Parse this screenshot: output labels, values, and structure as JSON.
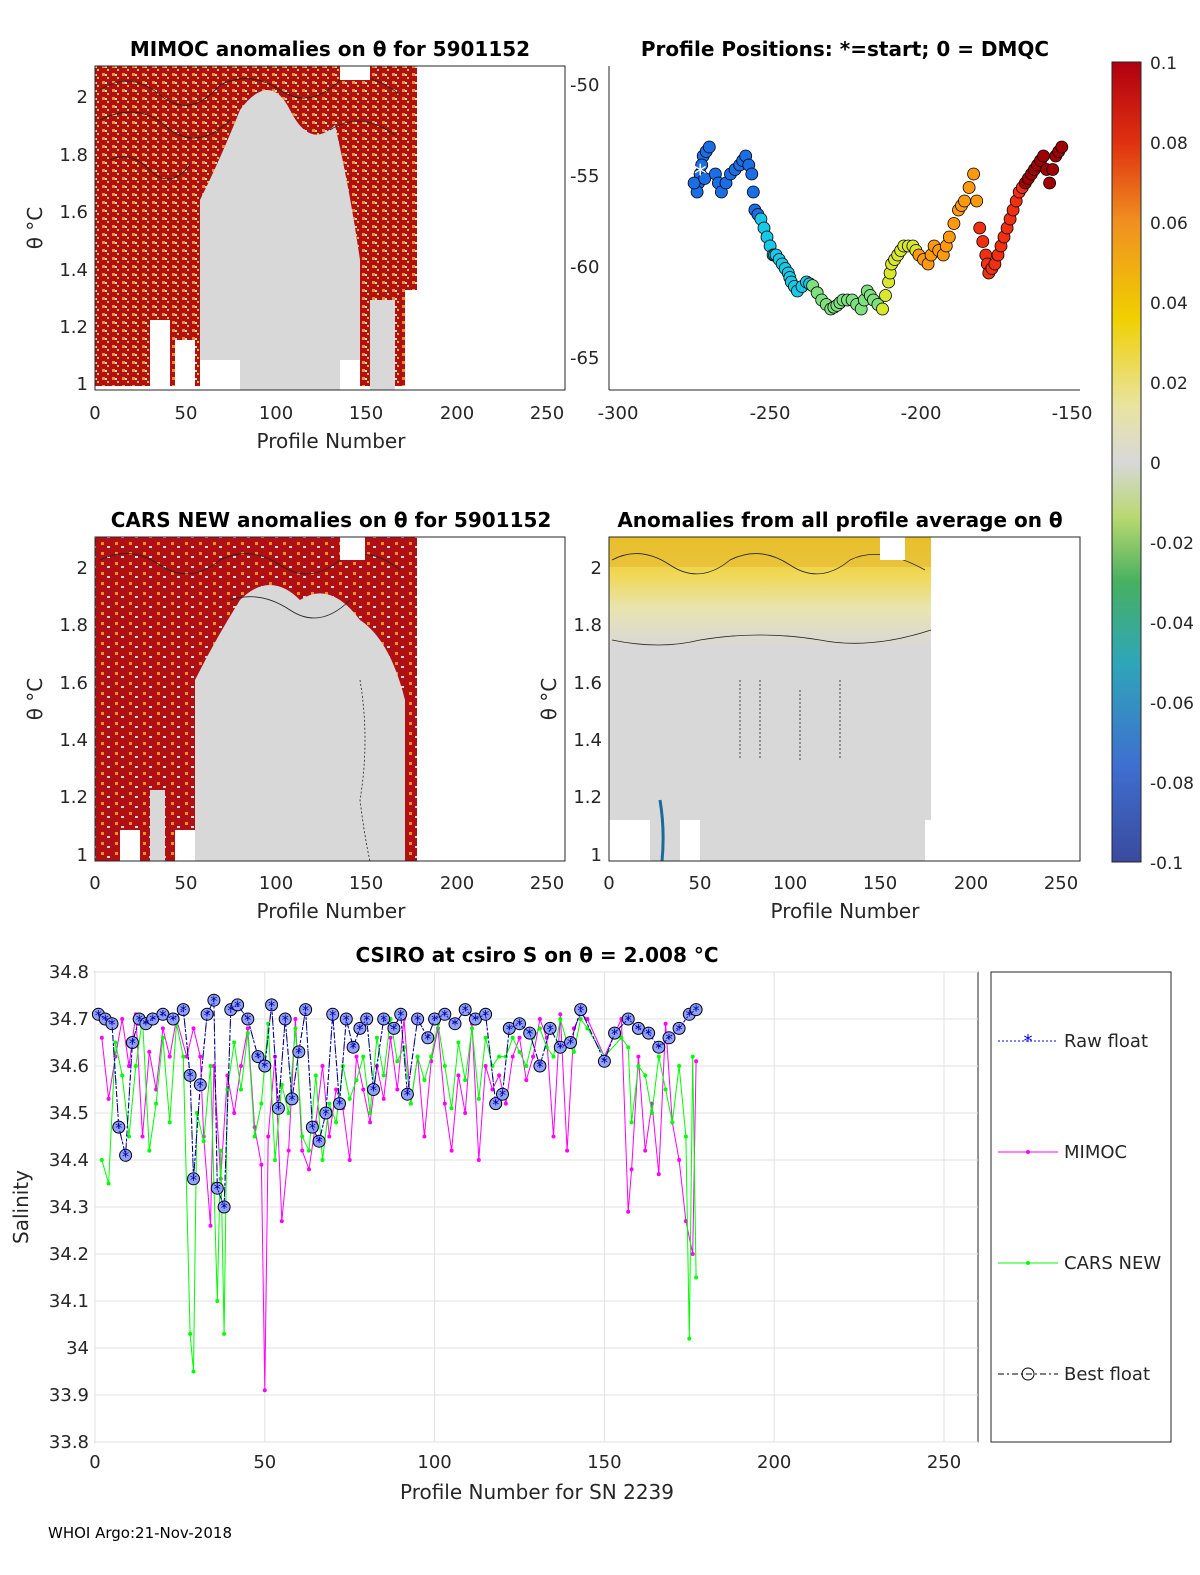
{
  "panels": {
    "mimoc": {
      "title": "MIMOC anomalies on θ  for 5901152",
      "xlabel": "Profile Number",
      "ylabel": "θ °C",
      "xticks": [
        "0",
        "50",
        "100",
        "150",
        "200",
        "250"
      ],
      "yticks": [
        "1",
        "1.2",
        "1.4",
        "1.6",
        "1.8",
        "2"
      ]
    },
    "positions": {
      "title": "Profile Positions: *=start; 0 = DMQC",
      "xticks": [
        "-300",
        "-250",
        "-200",
        "-150"
      ],
      "yticks": [
        "-50",
        "-55",
        "-60",
        "-65"
      ]
    },
    "cars": {
      "title": "CARS NEW anomalies on θ for 5901152",
      "xlabel": "Profile Number",
      "ylabel": "θ °C",
      "xticks": [
        "0",
        "50",
        "100",
        "150",
        "200",
        "250"
      ],
      "yticks": [
        "1",
        "1.2",
        "1.4",
        "1.6",
        "1.8",
        "2"
      ]
    },
    "average": {
      "title": "Anomalies from all profile average on θ",
      "xlabel": "Profile Number",
      "ylabel": "θ °C",
      "xticks": [
        "0",
        "50",
        "100",
        "150",
        "200",
        "250"
      ],
      "yticks": [
        "1",
        "1.2",
        "1.4",
        "1.6",
        "1.8",
        "2"
      ]
    },
    "colorbar": {
      "ticks": [
        "0.1",
        "0.08",
        "0.06",
        "0.04",
        "0.02",
        "0",
        "-0.02",
        "-0.04",
        "-0.06",
        "-0.08",
        "-0.1"
      ]
    }
  },
  "footer": "WHOI Argo:21-Nov-2018",
  "chart_data": [
    {
      "type": "heatmap",
      "title": "MIMOC anomalies on θ  for 5901152",
      "xlabel": "Profile Number",
      "ylabel": "θ °C",
      "xlim": [
        0,
        260
      ],
      "ylim": [
        0.98,
        2.1
      ],
      "data_extent_profiles": 177,
      "clim": [
        -0.1,
        0.1
      ]
    },
    {
      "type": "scatter",
      "title": "Profile Positions: *=start; 0 = DMQC",
      "xlim": [
        -305,
        -150
      ],
      "ylim": [
        -67,
        -49
      ],
      "x": [
        -275,
        -276,
        -274,
        -272,
        -277,
        -270,
        -268,
        -265,
        -262,
        -260,
        -258,
        -257,
        -255,
        -253,
        -251,
        -250,
        -248,
        -246,
        -245,
        -243,
        -240,
        -238,
        -235,
        -232,
        -230,
        -228,
        -225,
        -222,
        -220,
        -218,
        -215,
        -213,
        -212,
        -210,
        -208,
        -205,
        -203,
        -200,
        -198,
        -195,
        -193,
        -190,
        -188,
        -185,
        -183,
        -181,
        -180,
        -178,
        -176,
        -174,
        -172,
        -170,
        -168,
        -166,
        -164,
        -162,
        -160,
        -158,
        -156
      ],
      "y": [
        -55.0,
        -56.0,
        -54.0,
        -53.5,
        -55.5,
        -55.0,
        -56.0,
        -55.0,
        -54.5,
        -54.0,
        -55.0,
        -57.0,
        -57.5,
        -58.5,
        -59.5,
        -59.5,
        -60.0,
        -60.5,
        -61.0,
        -61.5,
        -61.0,
        -61.2,
        -62.0,
        -62.5,
        -62.3,
        -62.0,
        -62.0,
        -62.5,
        -61.5,
        -62.0,
        -62.5,
        -61.0,
        -60.0,
        -59.5,
        -59.0,
        -59.0,
        -59.5,
        -60.0,
        -59.0,
        -59.5,
        -58.5,
        -57.0,
        -56.5,
        -55.0,
        -58.0,
        -59.5,
        -60.5,
        -60.0,
        -59.0,
        -58.0,
        -57.0,
        -56.0,
        -55.5,
        -55.0,
        -54.5,
        -54.0,
        -55.5,
        -54.0,
        -53.5
      ],
      "start_marker": [
        -275,
        -55.0
      ],
      "marker_color_by": "profile number"
    },
    {
      "type": "heatmap",
      "title": "CARS NEW anomalies on θ for 5901152",
      "xlabel": "Profile Number",
      "ylabel": "θ °C",
      "xlim": [
        0,
        260
      ],
      "ylim": [
        0.98,
        2.1
      ],
      "data_extent_profiles": 177,
      "clim": [
        -0.1,
        0.1
      ]
    },
    {
      "type": "heatmap",
      "title": "Anomalies from all profile average on θ",
      "xlabel": "Profile Number",
      "ylabel": "θ °C",
      "xlim": [
        0,
        260
      ],
      "ylim": [
        0.98,
        2.1
      ],
      "data_extent_profiles": 177,
      "clim": [
        -0.1,
        0.1
      ]
    },
    {
      "type": "line",
      "title": "CSIRO at csiro S on θ = 2.008",
      "title_unit": "°C",
      "xlabel": "Profile Number for SN 2239",
      "ylabel": "Salinity",
      "xlim": [
        0,
        260
      ],
      "ylim": [
        33.8,
        34.8
      ],
      "xticks": [
        "0",
        "50",
        "100",
        "150",
        "200",
        "250"
      ],
      "yticks": [
        "33.8",
        "33.9",
        "34",
        "34.1",
        "34.2",
        "34.3",
        "34.4",
        "34.5",
        "34.6",
        "34.7",
        "34.8"
      ],
      "grid": true,
      "legend": [
        "Raw float",
        "MIMOC",
        "CARS NEW",
        "Best float"
      ],
      "series": [
        {
          "name": "Best float",
          "color": "#000000",
          "x": [
            1,
            3,
            5,
            7,
            9,
            11,
            13,
            15,
            17,
            20,
            23,
            26,
            28,
            29,
            31,
            33,
            35,
            36,
            38,
            40,
            42,
            45,
            48,
            50,
            52,
            54,
            56,
            58,
            60,
            62,
            64,
            66,
            68,
            70,
            72,
            74,
            76,
            78,
            80,
            82,
            85,
            88,
            90,
            92,
            95,
            98,
            100,
            103,
            106,
            109,
            112,
            115,
            118,
            120,
            122,
            125,
            128,
            131,
            134,
            137,
            140,
            143,
            150,
            153,
            157,
            160,
            163,
            166,
            169,
            172,
            175,
            177
          ],
          "values": [
            34.71,
            34.7,
            34.69,
            34.47,
            34.41,
            34.65,
            34.7,
            34.69,
            34.7,
            34.71,
            34.7,
            34.72,
            34.58,
            34.36,
            34.56,
            34.71,
            34.74,
            34.34,
            34.3,
            34.72,
            34.73,
            34.7,
            34.62,
            34.6,
            34.73,
            34.51,
            34.7,
            34.53,
            34.63,
            34.72,
            34.47,
            34.44,
            34.5,
            34.71,
            34.52,
            34.7,
            34.64,
            34.68,
            34.7,
            34.55,
            34.7,
            34.68,
            34.71,
            34.54,
            34.7,
            34.66,
            34.7,
            34.71,
            34.69,
            34.72,
            34.7,
            34.71,
            34.52,
            34.54,
            34.68,
            34.69,
            34.67,
            34.6,
            34.68,
            34.64,
            34.65,
            34.72,
            34.61,
            34.67,
            34.7,
            34.68,
            34.67,
            34.64,
            34.66,
            34.68,
            34.71,
            34.72
          ]
        },
        {
          "name": "Raw float",
          "color": "#0000ff",
          "x": [
            1,
            3,
            5,
            7,
            9,
            11,
            13,
            15,
            17,
            20,
            23,
            26,
            28,
            29,
            31,
            33,
            35,
            36,
            38,
            40,
            42,
            45,
            48,
            50,
            52,
            54,
            56,
            58,
            60,
            62,
            64,
            66,
            68,
            70,
            72,
            74,
            76,
            78,
            80,
            82,
            85,
            88,
            90,
            92,
            95,
            98,
            100,
            103,
            106,
            109,
            112,
            115,
            118,
            120,
            122,
            125,
            128,
            131,
            134,
            137,
            140,
            143,
            150,
            153,
            157,
            160,
            163,
            166,
            169,
            172,
            175,
            177
          ],
          "values": [
            34.71,
            34.7,
            34.69,
            34.47,
            34.41,
            34.65,
            34.7,
            34.69,
            34.7,
            34.71,
            34.7,
            34.72,
            34.58,
            34.36,
            34.56,
            34.71,
            34.74,
            34.34,
            34.3,
            34.72,
            34.73,
            34.7,
            34.62,
            34.6,
            34.73,
            34.51,
            34.7,
            34.53,
            34.63,
            34.72,
            34.47,
            34.44,
            34.5,
            34.71,
            34.52,
            34.7,
            34.64,
            34.68,
            34.7,
            34.55,
            34.7,
            34.68,
            34.71,
            34.54,
            34.7,
            34.66,
            34.7,
            34.71,
            34.69,
            34.72,
            34.7,
            34.71,
            34.52,
            34.54,
            34.68,
            34.69,
            34.67,
            34.6,
            34.68,
            34.64,
            34.65,
            34.72,
            34.61,
            34.67,
            34.7,
            34.68,
            34.67,
            34.64,
            34.66,
            34.68,
            34.71,
            34.72
          ]
        },
        {
          "name": "MIMOC",
          "color": "#ff00ff",
          "x": [
            2,
            4,
            6,
            8,
            10,
            12,
            14,
            16,
            18,
            20,
            22,
            24,
            27,
            29,
            31,
            32,
            34,
            35,
            37,
            39,
            41,
            43,
            45,
            47,
            49,
            50,
            51,
            53,
            55,
            57,
            59,
            61,
            63,
            65,
            67,
            69,
            71,
            73,
            75,
            77,
            79,
            81,
            83,
            85,
            87,
            89,
            91,
            93,
            95,
            97,
            99,
            101,
            103,
            105,
            107,
            109,
            111,
            113,
            115,
            117,
            119,
            121,
            123,
            125,
            127,
            129,
            131,
            133,
            135,
            137,
            139,
            141,
            143,
            145,
            150,
            155,
            157,
            158,
            160,
            162,
            164,
            166,
            168,
            170,
            172,
            174,
            176,
            177
          ],
          "values": [
            34.66,
            34.53,
            34.62,
            34.7,
            34.6,
            34.71,
            34.45,
            34.63,
            34.55,
            34.68,
            34.62,
            34.7,
            34.62,
            34.68,
            34.62,
            34.45,
            34.26,
            34.6,
            34.36,
            34.58,
            34.5,
            34.6,
            34.68,
            34.47,
            34.39,
            33.91,
            34.45,
            34.62,
            34.27,
            34.42,
            34.7,
            34.42,
            34.38,
            34.48,
            34.6,
            34.45,
            34.55,
            34.51,
            34.4,
            34.62,
            34.55,
            34.48,
            34.6,
            34.53,
            34.66,
            34.55,
            34.7,
            34.52,
            34.62,
            34.45,
            34.61,
            34.68,
            34.52,
            34.42,
            34.58,
            34.5,
            34.69,
            34.4,
            34.6,
            34.55,
            34.58,
            34.52,
            34.62,
            34.66,
            34.57,
            34.62,
            34.7,
            34.66,
            34.45,
            34.71,
            34.42,
            34.68,
            34.71,
            34.7,
            34.62,
            34.7,
            34.29,
            34.38,
            34.62,
            34.42,
            34.52,
            34.37,
            34.69,
            34.48,
            34.4,
            34.27,
            34.2,
            34.61
          ]
        },
        {
          "name": "CARS NEW",
          "color": "#00ff00",
          "x": [
            2,
            4,
            6,
            8,
            10,
            12,
            14,
            16,
            18,
            20,
            22,
            24,
            26,
            28,
            29,
            30,
            32,
            34,
            35,
            36,
            37,
            38,
            39,
            41,
            43,
            45,
            47,
            49,
            51,
            53,
            55,
            57,
            59,
            61,
            63,
            65,
            67,
            69,
            71,
            73,
            75,
            77,
            79,
            81,
            83,
            85,
            87,
            89,
            91,
            93,
            95,
            97,
            99,
            101,
            103,
            105,
            107,
            109,
            111,
            113,
            115,
            117,
            119,
            121,
            123,
            125,
            127,
            129,
            131,
            133,
            135,
            137,
            139,
            141,
            143,
            145,
            150,
            155,
            157,
            158,
            160,
            162,
            164,
            166,
            168,
            170,
            172,
            174,
            175,
            176,
            177
          ],
          "values": [
            34.4,
            34.35,
            34.65,
            34.58,
            34.45,
            34.6,
            34.7,
            34.42,
            34.52,
            34.66,
            34.48,
            34.69,
            34.62,
            34.03,
            33.95,
            34.5,
            34.44,
            34.6,
            34.35,
            34.1,
            34.42,
            34.03,
            34.55,
            34.65,
            34.55,
            34.67,
            34.45,
            34.52,
            34.69,
            34.4,
            34.56,
            34.5,
            34.68,
            34.45,
            34.42,
            34.58,
            34.4,
            34.52,
            34.48,
            34.6,
            34.53,
            34.57,
            34.62,
            34.5,
            34.66,
            34.58,
            34.7,
            34.61,
            34.64,
            34.52,
            34.62,
            34.57,
            34.62,
            34.69,
            34.6,
            34.51,
            34.65,
            34.57,
            34.68,
            34.53,
            34.66,
            34.6,
            34.62,
            34.62,
            34.66,
            34.63,
            34.6,
            34.66,
            34.68,
            34.64,
            34.62,
            34.7,
            34.65,
            34.63,
            34.7,
            34.68,
            34.62,
            34.66,
            34.64,
            34.48,
            34.6,
            34.58,
            34.5,
            34.62,
            34.55,
            34.48,
            34.6,
            34.45,
            34.02,
            34.62,
            34.15
          ]
        }
      ]
    }
  ]
}
